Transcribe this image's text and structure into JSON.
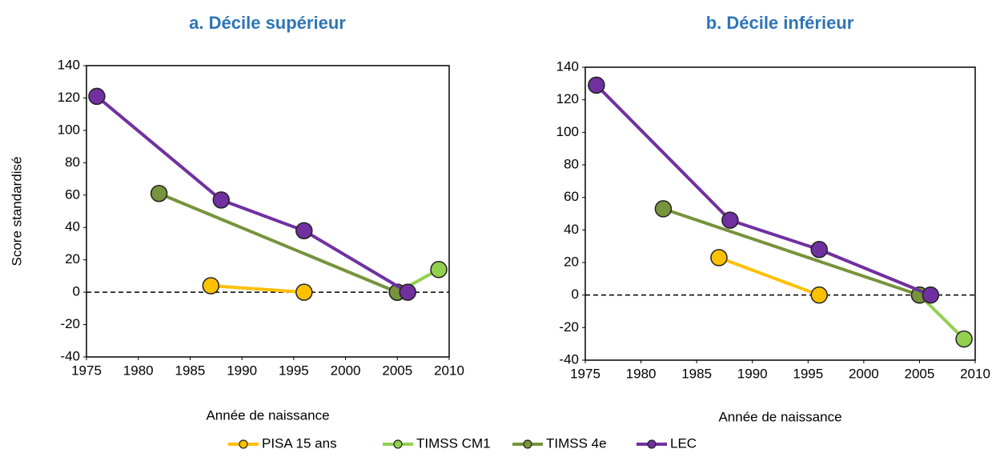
{
  "chart_data": [
    {
      "type": "line",
      "title": "a. Décile supérieur",
      "x_label": "Année de naissance",
      "y_label": "Score standardisé",
      "xlim": [
        1975,
        2010
      ],
      "xticks": [
        1975,
        1980,
        1985,
        1990,
        1995,
        2000,
        2005,
        2010
      ],
      "ylim": [
        -40,
        140
      ],
      "yticks": [
        -40,
        -20,
        0,
        20,
        40,
        60,
        80,
        100,
        120,
        140
      ],
      "reference_line": 0,
      "series": [
        {
          "name": "PISA 15 ans",
          "color": "#ffc000",
          "x": [
            1987,
            1996
          ],
          "values": [
            4,
            0
          ]
        },
        {
          "name": "TIMSS CM1",
          "color": "#92d050",
          "x": [
            2005,
            2009
          ],
          "values": [
            0,
            14
          ]
        },
        {
          "name": "TIMSS 4e",
          "color": "#77933c",
          "x": [
            1982,
            2005
          ],
          "values": [
            61,
            0
          ]
        },
        {
          "name": "LEC",
          "color": "#7030a0",
          "x": [
            1976,
            1988,
            1996,
            2006
          ],
          "values": [
            121,
            57,
            38,
            0
          ]
        }
      ]
    },
    {
      "type": "line",
      "title": "b. Décile inférieur",
      "x_label": "Année de naissance",
      "xlim": [
        1975,
        2010
      ],
      "xticks": [
        1975,
        1980,
        1985,
        1990,
        1995,
        2000,
        2005,
        2010
      ],
      "ylim": [
        -40,
        140
      ],
      "yticks": [
        -40,
        -20,
        0,
        20,
        40,
        60,
        80,
        100,
        120,
        140
      ],
      "reference_line": 0,
      "series": [
        {
          "color": "#ffc000",
          "x": [
            1987,
            1996
          ],
          "values": [
            23,
            0
          ]
        },
        {
          "color": "#92d050",
          "x": [
            2005,
            2009
          ],
          "values": [
            0,
            -27
          ]
        },
        {
          "color": "#77933c",
          "x": [
            1982,
            2005
          ],
          "values": [
            53,
            0
          ]
        },
        {
          "color": "#7030a0",
          "x": [
            1976,
            1988,
            1996,
            2006
          ],
          "values": [
            129,
            46,
            28,
            0
          ]
        }
      ]
    }
  ]
}
